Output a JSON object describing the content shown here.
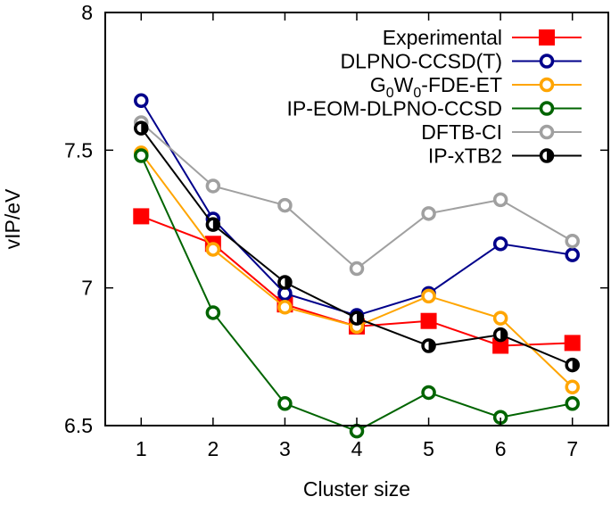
{
  "chart_data": {
    "type": "line",
    "title": "",
    "xlabel": "Cluster size",
    "ylabel": "vIP/eV",
    "x": [
      1,
      2,
      3,
      4,
      5,
      6,
      7
    ],
    "xticks": [
      "1",
      "2",
      "3",
      "4",
      "5",
      "6",
      "7"
    ],
    "xlim": [
      0.5,
      7.5
    ],
    "ylim": [
      6.5,
      8
    ],
    "yticks": [
      "6.5",
      "7",
      "7.5",
      "8"
    ],
    "ytick_values": [
      6.5,
      7.0,
      7.5,
      8.0
    ],
    "grid": false,
    "legend": "top-right",
    "series": [
      {
        "name": "Experimental",
        "legend_main": "Experimental",
        "color": "#ff0000",
        "marker": "filled-square",
        "values": [
          7.26,
          7.16,
          6.94,
          6.86,
          6.88,
          6.79,
          6.8
        ]
      },
      {
        "name": "DLPNO-CCSD(T)",
        "legend_main": "DLPNO-CCSD(T)",
        "color": "#00008b",
        "marker": "open-circle",
        "values": [
          7.68,
          7.25,
          6.98,
          6.9,
          6.98,
          7.16,
          7.12
        ]
      },
      {
        "name": "G0W0-FDE-ET",
        "legend_main": "G",
        "legend_sub1": "0",
        "legend_mid": "W",
        "legend_sub2": "0",
        "legend_tail": "-FDE-ET",
        "color": "#ffa500",
        "marker": "open-circle",
        "values": [
          7.49,
          7.14,
          6.93,
          6.86,
          6.97,
          6.89,
          6.64
        ]
      },
      {
        "name": "IP-EOM-DLPNO-CCSD",
        "legend_main": "IP-EOM-DLPNO-CCSD",
        "color": "#006400",
        "marker": "open-circle",
        "values": [
          7.48,
          6.91,
          6.58,
          6.48,
          6.62,
          6.53,
          6.58
        ]
      },
      {
        "name": "DFTB-CI",
        "legend_main": "DFTB-CI",
        "color": "#a0a0a0",
        "marker": "open-circle",
        "values": [
          7.6,
          7.37,
          7.3,
          7.07,
          7.27,
          7.32,
          7.17
        ]
      },
      {
        "name": "IP-xTB2",
        "legend_main": "IP-xTB2",
        "color": "#000000",
        "marker": "half-circle",
        "values": [
          7.58,
          7.23,
          7.02,
          6.89,
          6.79,
          6.83,
          6.72
        ]
      }
    ]
  }
}
